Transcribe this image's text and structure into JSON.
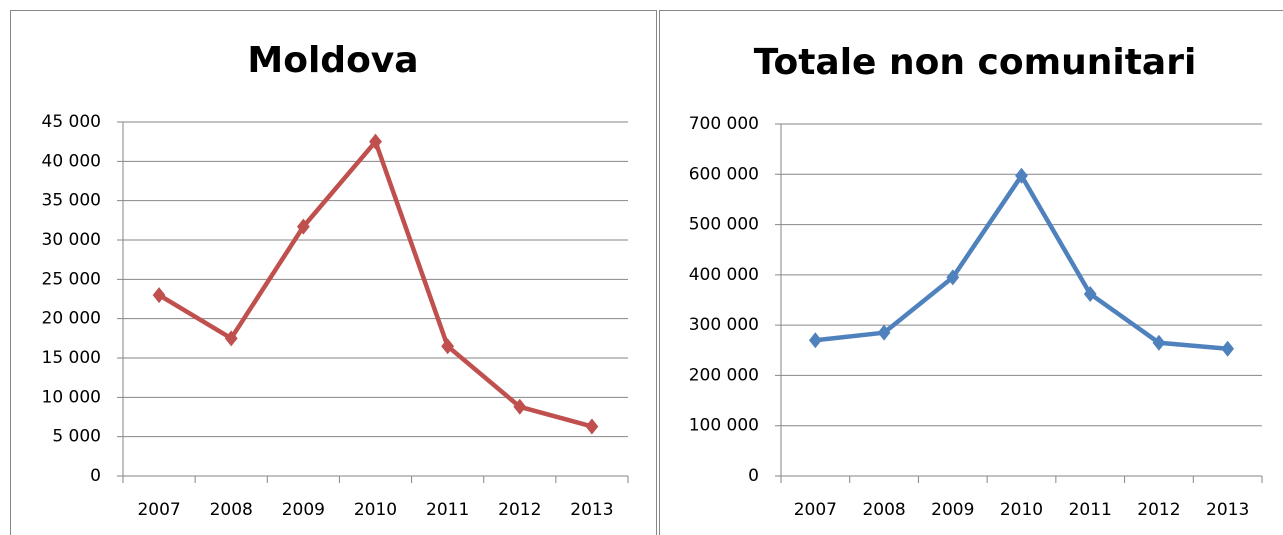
{
  "chart_data": [
    {
      "type": "line",
      "title": "Moldova",
      "categories": [
        "2007",
        "2008",
        "2009",
        "2010",
        "2011",
        "2012",
        "2013"
      ],
      "series": [
        {
          "name": "Moldova",
          "color": "#c0504d",
          "values": [
            23000,
            17500,
            31700,
            42500,
            16500,
            8800,
            6300
          ]
        }
      ],
      "ylim": [
        0,
        45000
      ],
      "yticks": [
        0,
        {
          "value": 5000,
          "label": "5 000"
        },
        {
          "value": 10000,
          "label": "10 000"
        },
        {
          "value": 15000,
          "label": "15 000"
        },
        {
          "value": 20000,
          "label": "20 000"
        },
        {
          "value": 25000,
          "label": "25 000"
        },
        {
          "value": 30000,
          "label": "30 000"
        },
        {
          "value": 35000,
          "label": "35 000"
        },
        {
          "value": 40000,
          "label": "40 000"
        },
        {
          "value": 45000,
          "label": "45 000"
        }
      ],
      "grid": true
    },
    {
      "type": "line",
      "title": "Totale non comunitari",
      "categories": [
        "2007",
        "2008",
        "2009",
        "2010",
        "2011",
        "2012",
        "2013"
      ],
      "series": [
        {
          "name": "Totale non comunitari",
          "color": "#4f81bd",
          "values": [
            270000,
            285000,
            395000,
            597000,
            362000,
            265000,
            253000
          ]
        }
      ],
      "ylim": [
        0,
        700000
      ],
      "yticks": [
        0,
        {
          "value": 100000,
          "label": "100 000"
        },
        {
          "value": 200000,
          "label": "200 000"
        },
        {
          "value": 300000,
          "label": "300 000"
        },
        {
          "value": 400000,
          "label": "400 000"
        },
        {
          "value": 500000,
          "label": "500 000"
        },
        {
          "value": 600000,
          "label": "600 000"
        },
        {
          "value": 700000,
          "label": "700 000"
        }
      ],
      "grid": true
    }
  ]
}
